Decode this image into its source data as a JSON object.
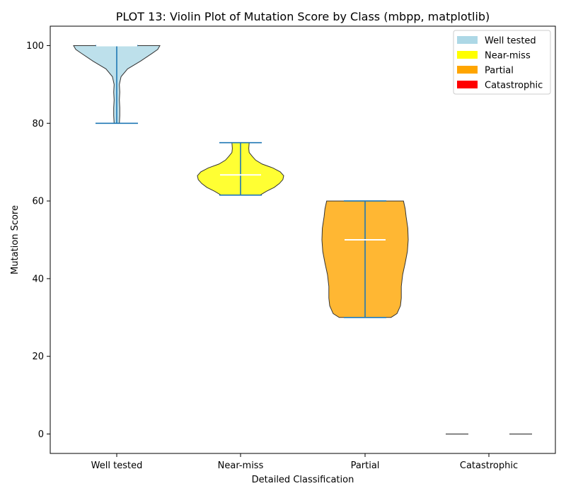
{
  "chart_data": {
    "type": "violin",
    "title": "PLOT 13: Violin Plot of Mutation Score by Class (mbpp, matplotlib)",
    "xlabel": "Detailed Classification",
    "ylabel": "Mutation Score",
    "ylim": [
      -5,
      105
    ],
    "yticks": [
      0,
      20,
      40,
      60,
      80,
      100
    ],
    "grid": false,
    "legend_position": "top-right",
    "categories": [
      "Well tested",
      "Near-miss",
      "Partial",
      "Catastrophic"
    ],
    "series": [
      {
        "name": "Well tested",
        "color": "#add8e6",
        "min": 80,
        "max": 100,
        "median": 100,
        "density": [
          [
            80,
            0.06
          ],
          [
            82,
            0.07
          ],
          [
            84,
            0.07
          ],
          [
            86,
            0.06
          ],
          [
            88,
            0.07
          ],
          [
            90,
            0.06
          ],
          [
            92,
            0.1
          ],
          [
            94,
            0.25
          ],
          [
            96,
            0.55
          ],
          [
            98,
            0.82
          ],
          [
            99,
            0.95
          ],
          [
            100,
            1.0
          ]
        ]
      },
      {
        "name": "Near-miss",
        "color": "#ffff00",
        "min": 61.5,
        "max": 75,
        "median": 66.7,
        "density": [
          [
            61.5,
            0.45
          ],
          [
            62.5,
            0.6
          ],
          [
            63.5,
            0.78
          ],
          [
            64.5,
            0.9
          ],
          [
            65.5,
            0.98
          ],
          [
            66.5,
            1.0
          ],
          [
            67.5,
            0.92
          ],
          [
            68.5,
            0.75
          ],
          [
            69.5,
            0.5
          ],
          [
            70.5,
            0.35
          ],
          [
            71.5,
            0.27
          ],
          [
            72.5,
            0.2
          ],
          [
            73.5,
            0.19
          ],
          [
            75,
            0.2
          ]
        ]
      },
      {
        "name": "Partial",
        "color": "#ffa500",
        "min": 30,
        "max": 60,
        "median": 50,
        "density": [
          [
            30,
            0.6
          ],
          [
            31,
            0.74
          ],
          [
            33,
            0.82
          ],
          [
            35,
            0.84
          ],
          [
            38,
            0.84
          ],
          [
            41,
            0.87
          ],
          [
            44,
            0.93
          ],
          [
            47,
            0.98
          ],
          [
            50,
            1.0
          ],
          [
            53,
            0.99
          ],
          [
            56,
            0.95
          ],
          [
            58,
            0.93
          ],
          [
            60,
            0.89
          ]
        ]
      },
      {
        "name": "Catastrophic",
        "color": "#ff0000",
        "min": 0,
        "max": 0,
        "median": 0,
        "density": [
          [
            0,
            1.0
          ]
        ]
      }
    ]
  }
}
